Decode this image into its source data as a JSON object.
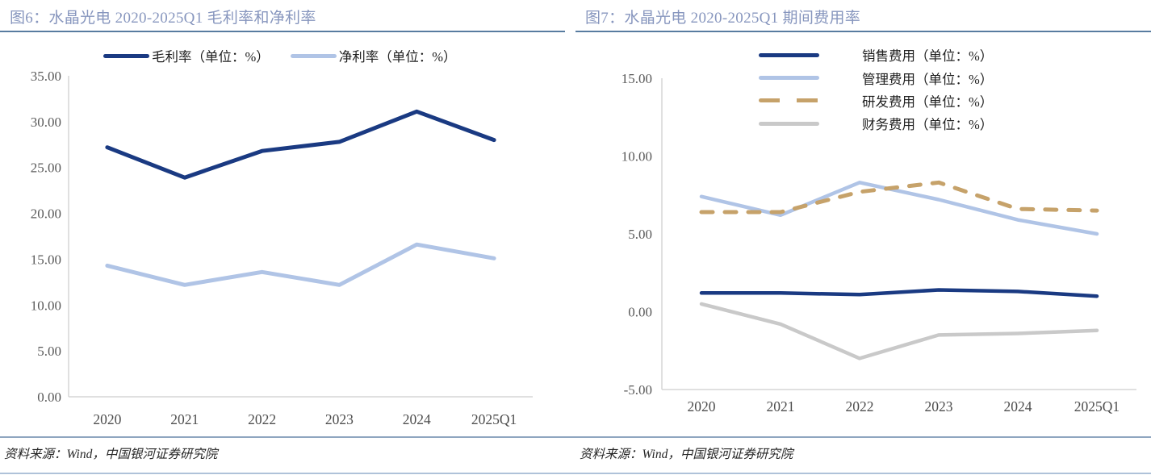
{
  "source_note": "资料来源：Wind，中国银河证券研究院",
  "colors": {
    "title_text": "#8796BE",
    "title_rule": "#587CA0",
    "navy": "#1A3A82",
    "light_blue": "#B0C4E6",
    "tan": "#C6A26A",
    "gray_line": "#C9C9C9",
    "axis_line": "#D6D6D6",
    "tick_text": "#595959",
    "source_rule": "#8FA6C0"
  },
  "chart_data": [
    {
      "type": "line",
      "title": "图6：水晶光电 2020-2025Q1 毛利率和净利率",
      "categories": [
        "2020",
        "2021",
        "2022",
        "2023",
        "2024",
        "2025Q1"
      ],
      "series": [
        {
          "key": "gross-margin",
          "name": "毛利率（单位：%）",
          "color": "#1A3A82",
          "style": "solid",
          "width": 5,
          "values": [
            27.2,
            23.9,
            26.8,
            27.8,
            31.1,
            28.0
          ]
        },
        {
          "key": "net-margin",
          "name": "净利率（单位：%）",
          "color": "#B0C4E6",
          "style": "solid",
          "width": 5,
          "values": [
            14.3,
            12.2,
            13.6,
            12.2,
            16.6,
            15.1
          ]
        }
      ],
      "ylim": [
        0,
        35
      ],
      "ytick_step": 5,
      "ytick_decimals": 2,
      "grid": false,
      "legend_position": "top"
    },
    {
      "type": "line",
      "title": "图7：水晶光电 2020-2025Q1 期间费用率",
      "categories": [
        "2020",
        "2021",
        "2022",
        "2023",
        "2024",
        "2025Q1"
      ],
      "series": [
        {
          "key": "sales-expense",
          "name": "销售费用（单位：%）",
          "color": "#1A3A82",
          "style": "solid",
          "width": 4.5,
          "values": [
            1.2,
            1.2,
            1.1,
            1.4,
            1.3,
            1.0
          ]
        },
        {
          "key": "admin-expense",
          "name": "管理费用（单位：%）",
          "color": "#B0C4E6",
          "style": "solid",
          "width": 4.5,
          "values": [
            7.4,
            6.2,
            8.3,
            7.2,
            5.9,
            5.0
          ]
        },
        {
          "key": "rd-expense",
          "name": "研发费用（单位：%）",
          "color": "#C6A26A",
          "style": "dashed",
          "width": 5,
          "values": [
            6.4,
            6.4,
            7.7,
            8.3,
            6.6,
            6.5
          ]
        },
        {
          "key": "finance-expense",
          "name": "财务费用（单位：%）",
          "color": "#C9C9C9",
          "style": "solid",
          "width": 4.5,
          "values": [
            0.5,
            -0.8,
            -3.0,
            -1.5,
            -1.4,
            -1.2
          ]
        }
      ],
      "ylim": [
        -5,
        15
      ],
      "ytick_step": 5,
      "ytick_decimals": 2,
      "grid": false,
      "legend_position": "top-right"
    }
  ]
}
